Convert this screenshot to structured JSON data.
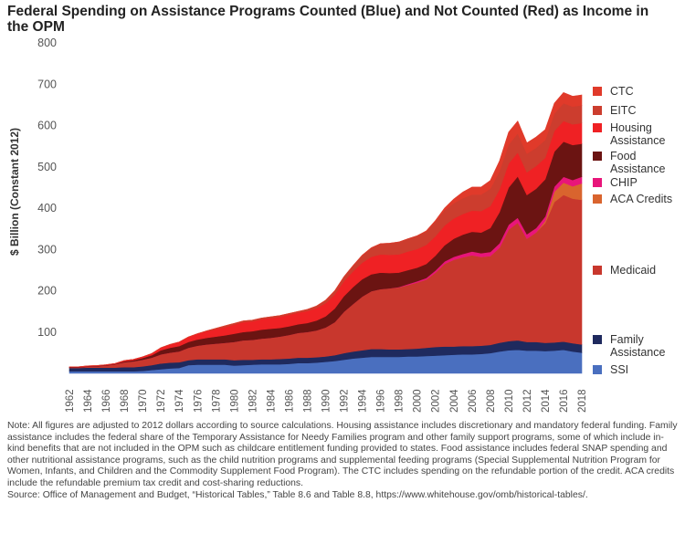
{
  "chart_data": {
    "type": "area",
    "stacked": true,
    "title": "Federal Spending on Assistance Programs Counted (Blue) and Not Counted (Red) as Income in the OPM",
    "ylabel": "$ Billion (Constant 2012)",
    "ylim": [
      0,
      800
    ],
    "yticks": [
      100,
      200,
      300,
      400,
      500,
      600,
      700,
      800
    ],
    "x": [
      1962,
      1963,
      1964,
      1965,
      1966,
      1967,
      1968,
      1969,
      1970,
      1971,
      1972,
      1973,
      1974,
      1975,
      1976,
      1977,
      1978,
      1979,
      1980,
      1981,
      1982,
      1983,
      1984,
      1985,
      1986,
      1987,
      1988,
      1989,
      1990,
      1991,
      1992,
      1993,
      1994,
      1995,
      1996,
      1997,
      1998,
      1999,
      2000,
      2001,
      2002,
      2003,
      2004,
      2005,
      2006,
      2007,
      2008,
      2009,
      2010,
      2011,
      2012,
      2013,
      2014,
      2015,
      2016,
      2017,
      2018
    ],
    "xticks": [
      1962,
      1964,
      1966,
      1968,
      1970,
      1972,
      1974,
      1976,
      1978,
      1980,
      1982,
      1984,
      1986,
      1988,
      1990,
      1992,
      1994,
      1996,
      1998,
      2000,
      2002,
      2004,
      2006,
      2008,
      2010,
      2012,
      2014,
      2016,
      2018
    ],
    "legend_position": "right",
    "series": [
      {
        "name": "SSI",
        "color": "#4a6fbf",
        "values": [
          5,
          5,
          5,
          5,
          5,
          5,
          5,
          5,
          6,
          8,
          10,
          12,
          13,
          20,
          21,
          21,
          21,
          21,
          19,
          20,
          21,
          22,
          22,
          22,
          23,
          25,
          25,
          26,
          28,
          30,
          33,
          36,
          38,
          40,
          40,
          40,
          40,
          41,
          41,
          42,
          43,
          44,
          45,
          46,
          46,
          47,
          49,
          53,
          56,
          57,
          55,
          55,
          54,
          55,
          57,
          53,
          50
        ]
      },
      {
        "name": "Family Assistance",
        "color": "#1f2a5e",
        "values": [
          8,
          8,
          9,
          9,
          9,
          9,
          10,
          10,
          11,
          12,
          14,
          14,
          14,
          12,
          13,
          13,
          13,
          13,
          13,
          13,
          12,
          12,
          12,
          13,
          13,
          13,
          13,
          13,
          13,
          14,
          16,
          17,
          18,
          19,
          19,
          18,
          18,
          18,
          19,
          20,
          21,
          21,
          20,
          20,
          20,
          20,
          20,
          21,
          22,
          23,
          21,
          21,
          20,
          20,
          20,
          20,
          20
        ]
      },
      {
        "name": "Medicaid",
        "color": "#c8372d",
        "values": [
          1,
          1,
          2,
          3,
          5,
          8,
          12,
          14,
          16,
          18,
          22,
          24,
          26,
          30,
          33,
          36,
          38,
          40,
          44,
          47,
          48,
          50,
          52,
          54,
          57,
          60,
          62,
          65,
          70,
          80,
          100,
          115,
          130,
          140,
          145,
          148,
          150,
          155,
          160,
          165,
          180,
          200,
          210,
          215,
          220,
          215,
          215,
          230,
          270,
          285,
          250,
          265,
          290,
          340,
          355,
          350,
          350
        ]
      },
      {
        "name": "ACA Credits",
        "color": "#d9642e",
        "values": [
          0,
          0,
          0,
          0,
          0,
          0,
          0,
          0,
          0,
          0,
          0,
          0,
          0,
          0,
          0,
          0,
          0,
          0,
          0,
          0,
          0,
          0,
          0,
          0,
          0,
          0,
          0,
          0,
          0,
          0,
          0,
          0,
          0,
          0,
          0,
          0,
          0,
          0,
          0,
          0,
          0,
          0,
          0,
          0,
          0,
          0,
          0,
          0,
          0,
          0,
          0,
          0,
          5,
          25,
          30,
          30,
          40
        ]
      },
      {
        "name": "CHIP",
        "color": "#e8157a",
        "values": [
          0,
          0,
          0,
          0,
          0,
          0,
          0,
          0,
          0,
          0,
          0,
          0,
          0,
          0,
          0,
          0,
          0,
          0,
          0,
          0,
          0,
          0,
          0,
          0,
          0,
          0,
          0,
          0,
          0,
          0,
          0,
          0,
          0,
          0,
          0,
          0,
          1,
          2,
          3,
          4,
          5,
          6,
          7,
          8,
          9,
          9,
          10,
          11,
          12,
          12,
          11,
          11,
          11,
          12,
          14,
          15,
          16
        ]
      },
      {
        "name": "Food Assistance",
        "color": "#6b1412",
        "values": [
          1,
          1,
          1,
          1,
          1,
          1,
          2,
          3,
          4,
          6,
          10,
          12,
          13,
          14,
          15,
          16,
          17,
          18,
          20,
          20,
          21,
          22,
          22,
          21,
          21,
          21,
          22,
          24,
          27,
          33,
          38,
          41,
          42,
          41,
          40,
          37,
          35,
          34,
          33,
          34,
          36,
          39,
          44,
          47,
          48,
          50,
          58,
          75,
          90,
          100,
          95,
          95,
          90,
          85,
          85,
          85,
          80
        ]
      },
      {
        "name": "Housing Assistance",
        "color": "#ef2124",
        "values": [
          1,
          1,
          1,
          1,
          1,
          1,
          2,
          2,
          3,
          4,
          6,
          8,
          10,
          12,
          14,
          16,
          18,
          20,
          22,
          24,
          24,
          25,
          26,
          27,
          28,
          28,
          29,
          30,
          32,
          34,
          36,
          38,
          40,
          42,
          44,
          44,
          44,
          45,
          45,
          46,
          47,
          48,
          49,
          50,
          51,
          52,
          53,
          55,
          58,
          58,
          55,
          55,
          52,
          50,
          50,
          50,
          50
        ]
      },
      {
        "name": "EITC",
        "color": "#cc3d2e",
        "values": [
          0,
          0,
          0,
          0,
          0,
          0,
          0,
          0,
          0,
          0,
          0,
          0,
          0,
          0,
          0,
          1,
          2,
          3,
          3,
          3,
          3,
          3,
          3,
          3,
          3,
          3,
          4,
          5,
          7,
          9,
          11,
          14,
          18,
          22,
          26,
          28,
          30,
          31,
          32,
          33,
          36,
          37,
          37,
          38,
          39,
          40,
          42,
          44,
          46,
          46,
          45,
          44,
          43,
          42,
          43,
          43,
          43
        ]
      },
      {
        "name": "CTC",
        "color": "#e03a2a",
        "values": [
          0,
          0,
          0,
          0,
          0,
          0,
          0,
          0,
          0,
          0,
          0,
          0,
          0,
          0,
          0,
          0,
          0,
          0,
          0,
          0,
          0,
          0,
          0,
          0,
          0,
          0,
          0,
          0,
          0,
          0,
          0,
          0,
          0,
          0,
          0,
          0,
          0,
          0,
          0,
          1,
          2,
          5,
          10,
          15,
          18,
          18,
          20,
          25,
          30,
          30,
          26,
          26,
          25,
          25,
          26,
          25,
          25
        ]
      }
    ],
    "legend_order": [
      "CTC",
      "EITC",
      "Housing Assistance",
      "Food Assistance",
      "CHIP",
      "ACA Credits",
      "Medicaid",
      "Family Assistance",
      "SSI"
    ],
    "legend_labels": {
      "CTC": [
        "CTC"
      ],
      "EITC": [
        "EITC"
      ],
      "Housing Assistance": [
        "Housing",
        "Assistance"
      ],
      "Food Assistance": [
        "Food",
        "Assistance"
      ],
      "CHIP": [
        "CHIP"
      ],
      "ACA Credits": [
        "ACA Credits"
      ],
      "Medicaid": [
        "Medicaid"
      ],
      "Family Assistance": [
        "Family",
        "Assistance"
      ],
      "SSI": [
        "SSI"
      ]
    }
  },
  "notes": {
    "note": "Note: All figures are adjusted to 2012 dollars according to source calculations. Housing assistance includes discretionary and mandatory federal funding. Family assistance includes the federal share of the Temporary Assistance for Needy Families program and other family support programs, some of which include in-kind benefits that are not included in the OPM such as childcare entitlement funding provided to states. Food assistance includes federal SNAP spending and other nutritional assistance programs, such as the child nutrition programs and supplemental feeding programs (Special Supplemental Nutrition Program for Women, Infants, and Children and the Commodity Supplement Food Program). The CTC includes spending on the refundable portion of the credit. ACA credits include the refundable premium tax credit and cost-sharing reductions.",
    "source": "Source: Office of Management and Budget, “Historical Tables,” Table 8.6 and Table 8.8, https://www.whitehouse.gov/omb/historical-tables/."
  }
}
